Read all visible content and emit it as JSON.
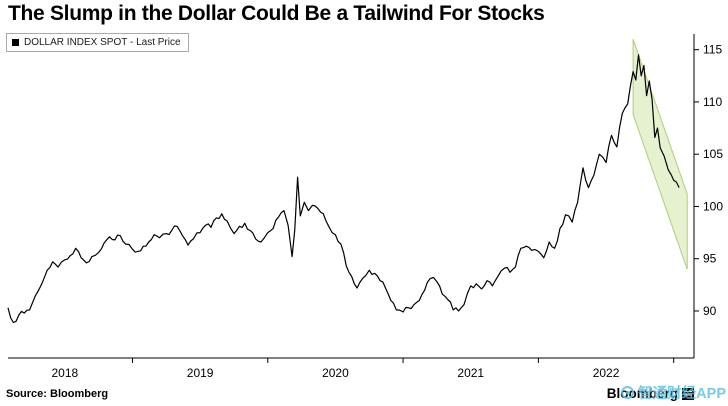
{
  "title": "The Slump in the Dollar Could Be a Tailwind For Stocks",
  "legend": {
    "label": "DOLLAR INDEX SPOT - Last Price",
    "swatch_color": "#000000"
  },
  "footer": {
    "source": "Source: Bloomberg",
    "brand": "Bloomberg",
    "watermark": "智通财经APP"
  },
  "chart_data": {
    "type": "line",
    "title": "The Slump in the Dollar Could Be a Tailwind For Stocks",
    "xlabel": "",
    "ylabel": "",
    "grid": false,
    "legend_position": "top-left",
    "x_range": [
      2018.08,
      2023.15
    ],
    "ylim": [
      85.5,
      116.5
    ],
    "y_ticks": [
      90,
      95,
      100,
      105,
      110,
      115
    ],
    "x_tick_labels": [
      {
        "label": "2018",
        "pos": 2018.5
      },
      {
        "label": "2019",
        "pos": 2019.5
      },
      {
        "label": "2020",
        "pos": 2020.5
      },
      {
        "label": "2021",
        "pos": 2021.5
      },
      {
        "label": "2022",
        "pos": 2022.5
      }
    ],
    "x_minor_ticks": [
      2019,
      2020,
      2021,
      2022,
      2023
    ],
    "series": [
      {
        "name": "DOLLAR INDEX SPOT - Last Price",
        "color": "#000000",
        "x": [
          2018.08,
          2018.12,
          2018.16,
          2018.2,
          2018.24,
          2018.28,
          2018.33,
          2018.37,
          2018.41,
          2018.45,
          2018.5,
          2018.54,
          2018.58,
          2018.62,
          2018.66,
          2018.7,
          2018.75,
          2018.79,
          2018.83,
          2018.87,
          2018.91,
          2018.95,
          2019.0,
          2019.04,
          2019.08,
          2019.12,
          2019.16,
          2019.2,
          2019.25,
          2019.29,
          2019.33,
          2019.37,
          2019.41,
          2019.45,
          2019.5,
          2019.54,
          2019.58,
          2019.62,
          2019.66,
          2019.7,
          2019.75,
          2019.79,
          2019.83,
          2019.87,
          2019.91,
          2019.95,
          2020.0,
          2020.04,
          2020.08,
          2020.12,
          2020.15,
          2020.18,
          2020.2,
          2020.22,
          2020.24,
          2020.27,
          2020.3,
          2020.33,
          2020.37,
          2020.41,
          2020.45,
          2020.5,
          2020.54,
          2020.58,
          2020.62,
          2020.66,
          2020.7,
          2020.75,
          2020.79,
          2020.83,
          2020.87,
          2020.91,
          2020.95,
          2021.0,
          2021.04,
          2021.08,
          2021.12,
          2021.16,
          2021.2,
          2021.25,
          2021.29,
          2021.33,
          2021.37,
          2021.41,
          2021.45,
          2021.5,
          2021.54,
          2021.58,
          2021.62,
          2021.66,
          2021.7,
          2021.75,
          2021.79,
          2021.83,
          2021.87,
          2021.91,
          2021.95,
          2022.0,
          2022.04,
          2022.08,
          2022.12,
          2022.16,
          2022.2,
          2022.25,
          2022.29,
          2022.33,
          2022.37,
          2022.41,
          2022.45,
          2022.5,
          2022.54,
          2022.58,
          2022.62,
          2022.66,
          2022.7,
          2022.72,
          2022.74,
          2022.76,
          2022.78,
          2022.8,
          2022.82,
          2022.84,
          2022.86,
          2022.88,
          2022.9,
          2022.93,
          2022.96,
          2023.0,
          2023.04
        ],
        "values": [
          90.3,
          88.9,
          89.6,
          89.8,
          90.1,
          91.4,
          92.6,
          93.9,
          94.7,
          94.2,
          94.9,
          95.3,
          96.0,
          95.1,
          94.6,
          95.2,
          95.6,
          96.5,
          97.1,
          96.8,
          97.2,
          96.4,
          95.9,
          95.7,
          96.2,
          96.6,
          97.3,
          97.0,
          97.4,
          97.7,
          98.1,
          97.2,
          96.3,
          96.9,
          97.5,
          98.2,
          98.0,
          98.9,
          99.3,
          98.6,
          97.4,
          98.1,
          98.4,
          97.7,
          96.9,
          96.6,
          97.5,
          97.9,
          99.0,
          99.6,
          98.2,
          95.2,
          97.8,
          102.8,
          99.1,
          100.4,
          99.6,
          100.1,
          99.8,
          99.3,
          98.1,
          97.3,
          96.4,
          94.3,
          93.3,
          92.2,
          93.1,
          93.9,
          93.6,
          92.9,
          92.2,
          91.0,
          90.1,
          89.9,
          90.3,
          90.6,
          91.0,
          92.0,
          93.1,
          92.8,
          91.6,
          91.1,
          90.1,
          90.0,
          90.6,
          92.4,
          92.6,
          92.1,
          92.9,
          92.4,
          93.3,
          94.1,
          93.7,
          94.2,
          96.0,
          96.2,
          95.8,
          95.7,
          95.1,
          96.6,
          96.0,
          97.9,
          99.2,
          98.5,
          100.4,
          103.7,
          101.8,
          103.0,
          105.0,
          104.2,
          106.8,
          105.7,
          108.9,
          109.8,
          112.9,
          112.1,
          114.5,
          112.5,
          113.5,
          110.6,
          112.0,
          110.2,
          106.6,
          107.5,
          105.6,
          104.8,
          103.5,
          102.5,
          101.8
        ]
      }
    ],
    "annotation_channel": {
      "fill": "#cde3a1",
      "fill_opacity": 0.5,
      "edge": "#a8c86e",
      "x": [
        2022.7,
        2023.1,
        2023.1,
        2022.7
      ],
      "values": [
        116.0,
        101.2,
        94.0,
        108.8
      ]
    }
  }
}
